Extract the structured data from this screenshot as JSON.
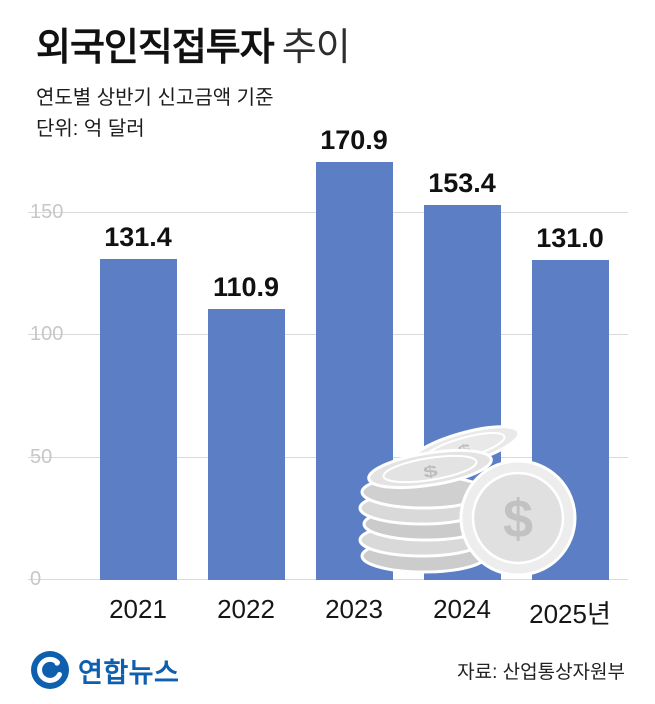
{
  "header": {
    "title_bold": "외국인직접투자",
    "title_light": "추이",
    "subtitle": "연도별 상반기 신고금액 기준",
    "unit": "단위: 억 달러"
  },
  "chart_data": {
    "type": "bar",
    "title": "외국인직접투자 추이",
    "subtitle": "연도별 상반기 신고금액 기준",
    "unit": "억 달러",
    "categories": [
      "2021",
      "2022",
      "2023",
      "2024",
      "2025년"
    ],
    "values": [
      131.4,
      110.9,
      170.9,
      153.4,
      131.0
    ],
    "labels": [
      "131.4",
      "110.9",
      "170.9",
      "153.4",
      "131.0"
    ],
    "yticks": [
      0,
      50,
      100,
      150
    ],
    "ylim": [
      0,
      180
    ],
    "grid": true,
    "legend": "none",
    "bar_color": "#5b7ec4"
  },
  "illustration": {
    "name": "dollar-coins",
    "coin_symbol": "$"
  },
  "footer": {
    "logo_text": "연합뉴스",
    "source": "자료: 산업통상자원부"
  },
  "colors": {
    "bar": "#5b7ec4",
    "grid": "#dadada",
    "ytick_text": "#c7c7c7",
    "logo_blue": "#0e5fae",
    "coin_gray": "#d6d6d6"
  }
}
